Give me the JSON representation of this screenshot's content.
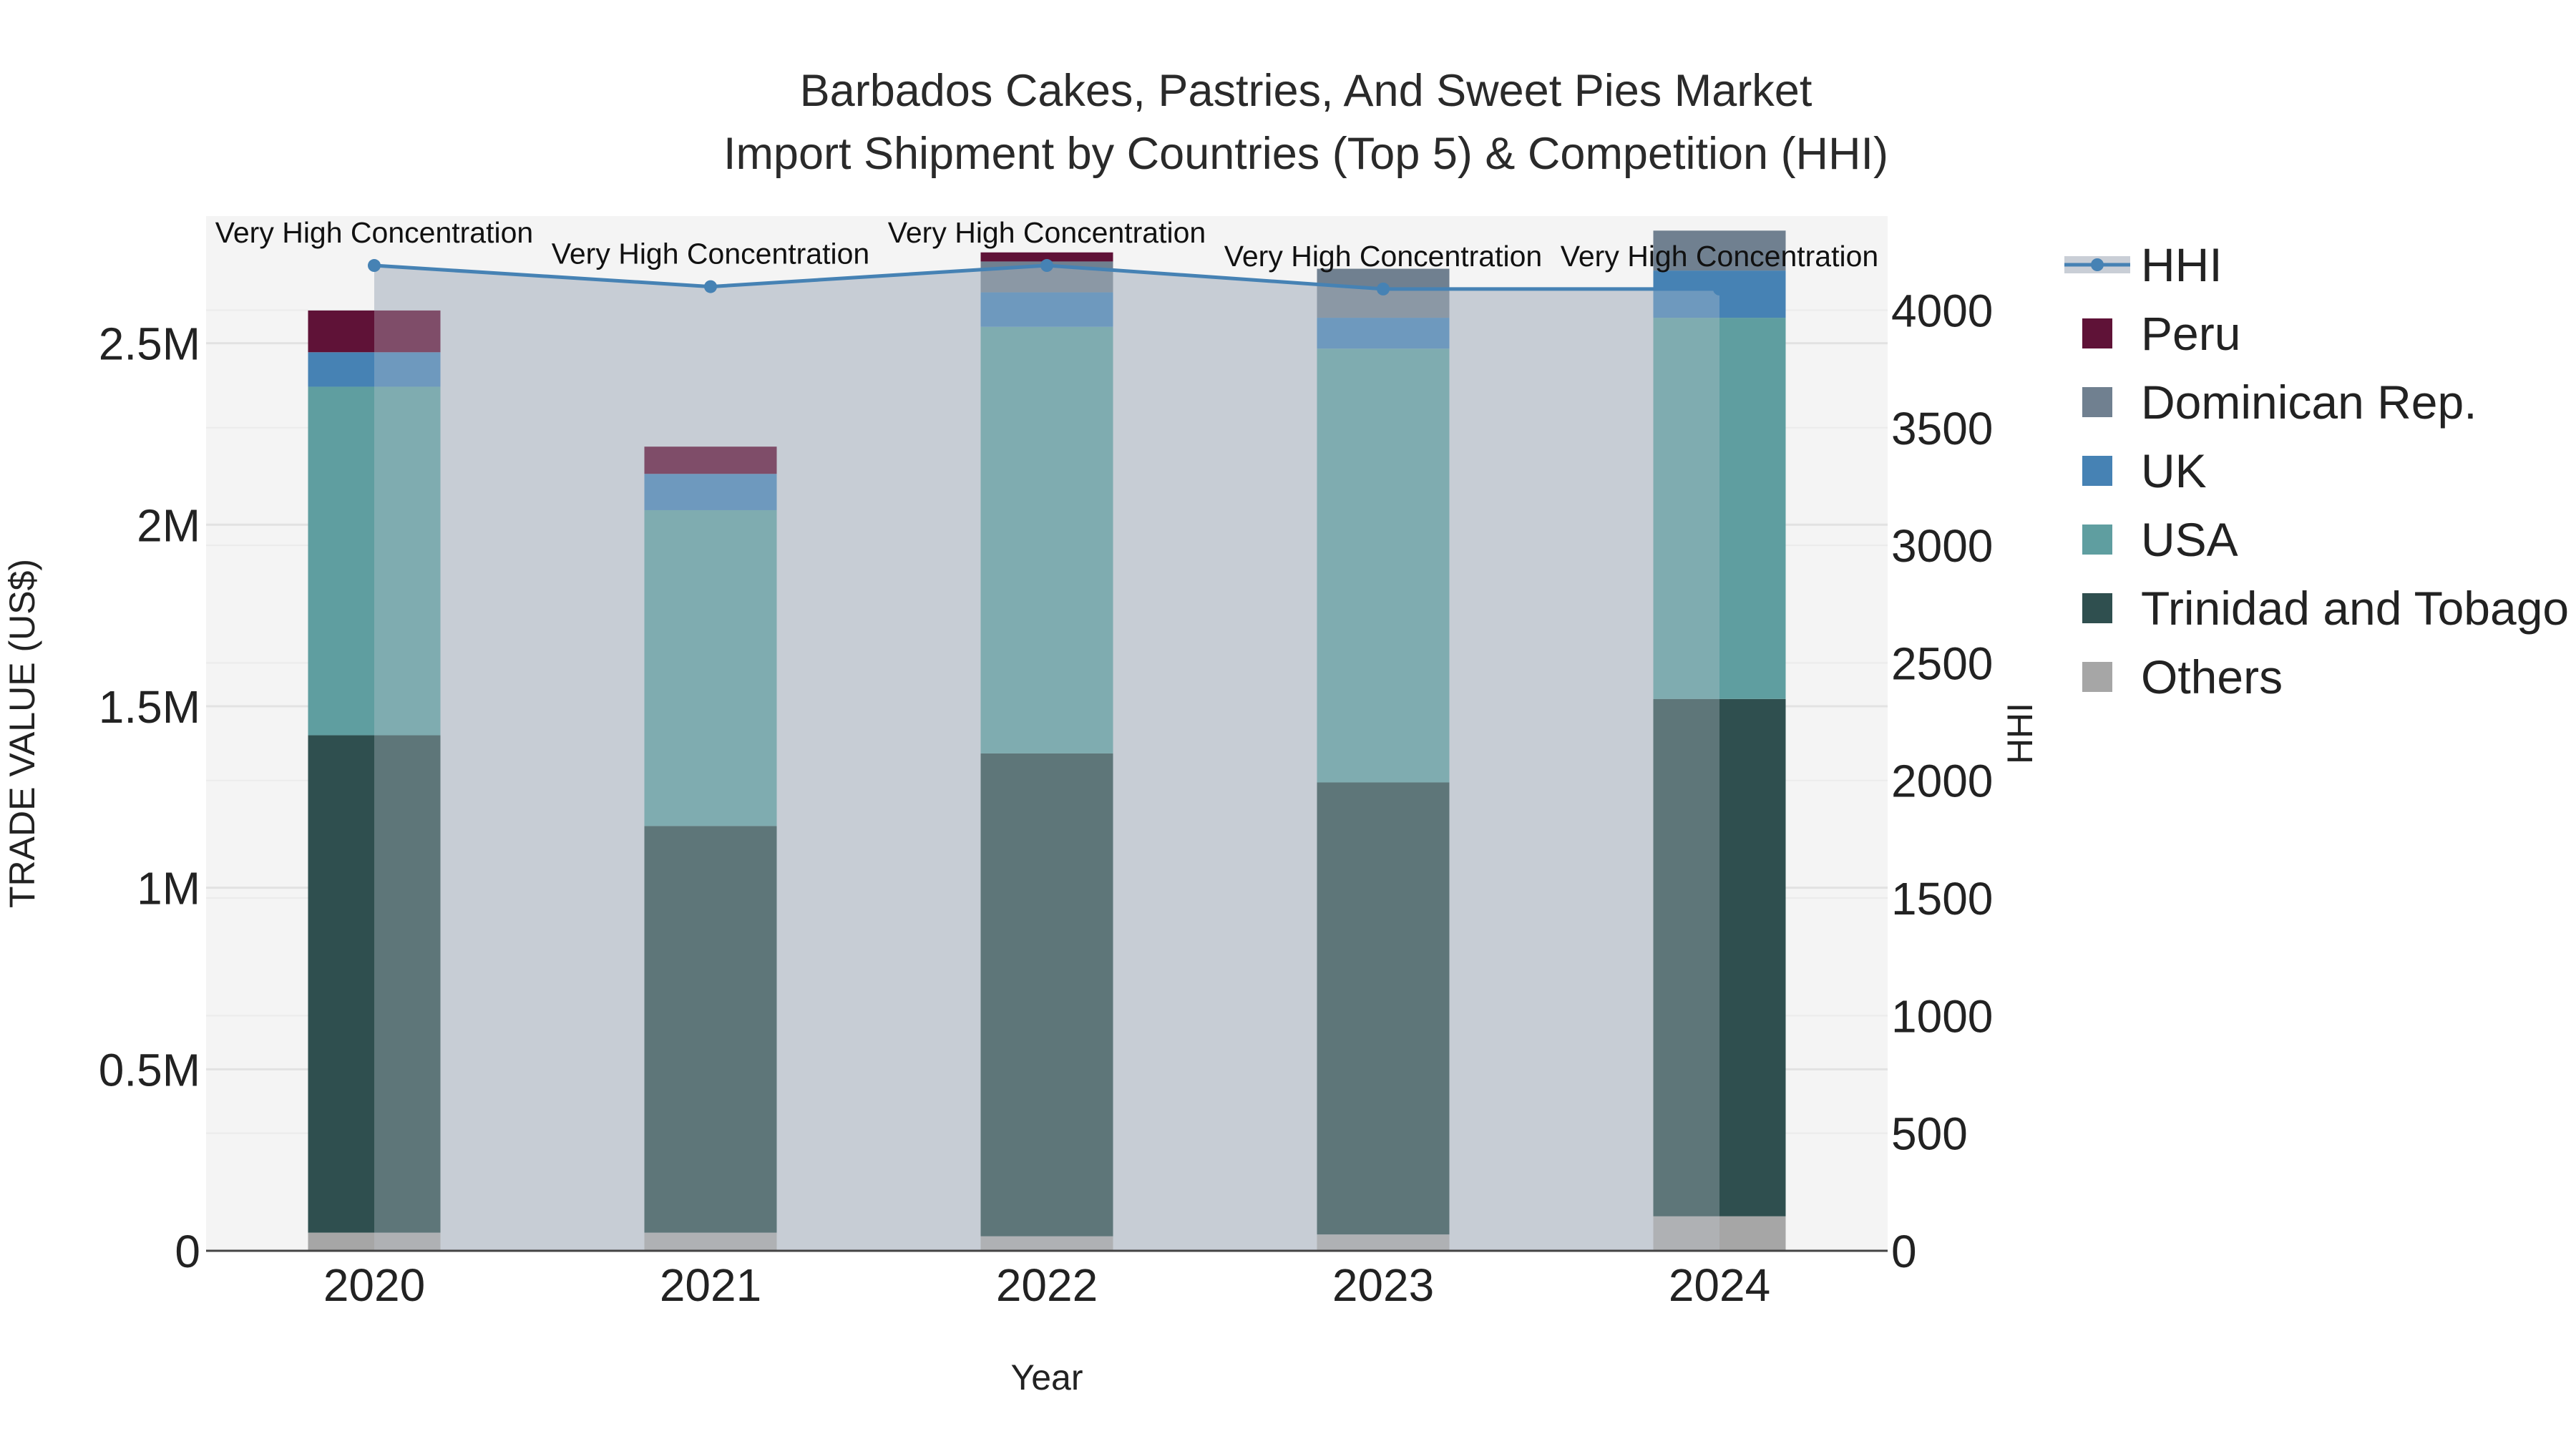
{
  "chart_data": {
    "type": "bar",
    "title_line1": "Barbados Cakes, Pastries, And Sweet Pies Market",
    "title_line2": "Import Shipment by Countries (Top 5) & Competition (HHI)",
    "xlabel": "Year",
    "ylabel": "TRADE VALUE (US$)",
    "y2label": "HHI",
    "categories": [
      "2020",
      "2021",
      "2022",
      "2023",
      "2024"
    ],
    "ylim": [
      0,
      2850000
    ],
    "y2lim": [
      0,
      4400
    ],
    "y_ticks": [
      {
        "value": 0,
        "label": "0"
      },
      {
        "value": 500000,
        "label": "0.5M"
      },
      {
        "value": 1000000,
        "label": "1M"
      },
      {
        "value": 1500000,
        "label": "1.5M"
      },
      {
        "value": 2000000,
        "label": "2M"
      },
      {
        "value": 2500000,
        "label": "2.5M"
      }
    ],
    "y2_ticks": [
      {
        "value": 0,
        "label": "0"
      },
      {
        "value": 500,
        "label": "500"
      },
      {
        "value": 1000,
        "label": "1000"
      },
      {
        "value": 1500,
        "label": "1500"
      },
      {
        "value": 2000,
        "label": "2000"
      },
      {
        "value": 2500,
        "label": "2500"
      },
      {
        "value": 3000,
        "label": "3000"
      },
      {
        "value": 3500,
        "label": "3500"
      },
      {
        "value": 4000,
        "label": "4000"
      }
    ],
    "series": [
      {
        "name": "Others",
        "color": "#a6a6a6",
        "values": [
          50000,
          50000,
          40000,
          45000,
          95000
        ]
      },
      {
        "name": "Trinidad and Tobago",
        "color": "#2f4f4f",
        "values": [
          1370000,
          1120000,
          1330000,
          1245000,
          1425000
        ]
      },
      {
        "name": "USA",
        "color": "#5f9ea0",
        "values": [
          960000,
          870000,
          1175000,
          1195000,
          1050000
        ]
      },
      {
        "name": "UK",
        "color": "#4682b4",
        "values": [
          95000,
          100000,
          95000,
          85000,
          130000
        ]
      },
      {
        "name": "Dominican Rep.",
        "color": "#708090",
        "values": [
          0,
          0,
          85000,
          135000,
          110000
        ]
      },
      {
        "name": "Peru",
        "color": "#5f1237",
        "values": [
          115000,
          75000,
          25000,
          0,
          0
        ]
      }
    ],
    "hhi": {
      "name": "HHI",
      "color": "#4682b4",
      "values": [
        4190,
        4100,
        4190,
        4090,
        4090
      ],
      "annotations": [
        "Very High Concentration",
        "Very High Concentration",
        "Very High Concentration",
        "Very High Concentration",
        "Very High Concentration"
      ]
    },
    "legend": {
      "position": "right",
      "items": [
        "HHI",
        "Peru",
        "Dominican Rep.",
        "UK",
        "USA",
        "Trinidad and Tobago",
        "Others"
      ]
    }
  }
}
